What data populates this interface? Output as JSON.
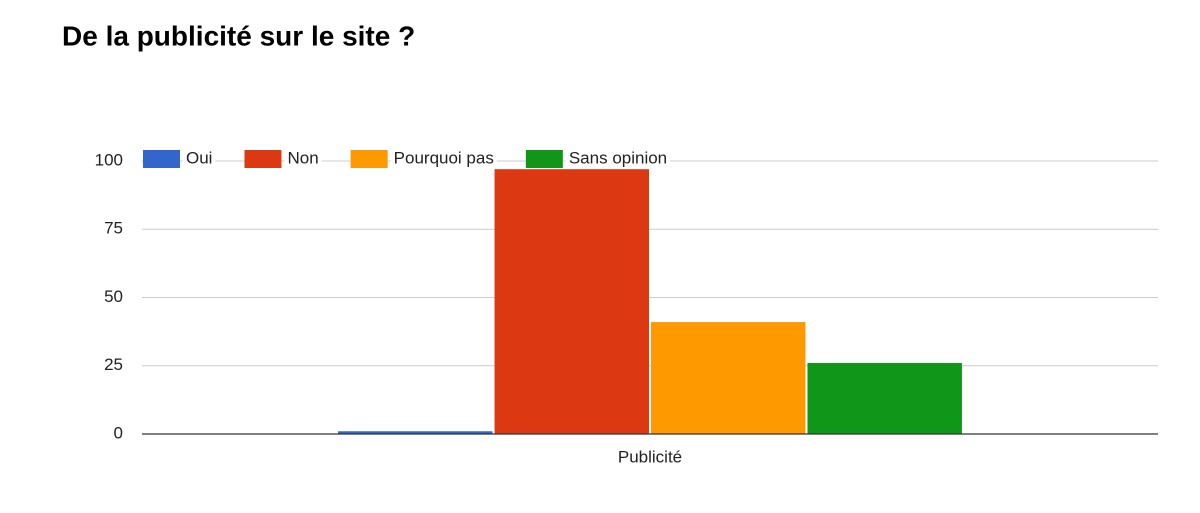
{
  "chart_data": {
    "type": "bar",
    "title": "De la publicité sur le site ?",
    "categories": [
      "Publicité"
    ],
    "series": [
      {
        "name": "Oui",
        "color": "#3366cc",
        "values": [
          1
        ]
      },
      {
        "name": "Non",
        "color": "#dc3912",
        "values": [
          97
        ]
      },
      {
        "name": "Pourquoi pas",
        "color": "#ff9900",
        "values": [
          41
        ]
      },
      {
        "name": "Sans opinion",
        "color": "#109618",
        "values": [
          26
        ]
      }
    ],
    "ylim": [
      0,
      100
    ],
    "yticks": [
      0,
      25,
      50,
      75,
      100
    ],
    "grid": true,
    "legend": "top"
  }
}
